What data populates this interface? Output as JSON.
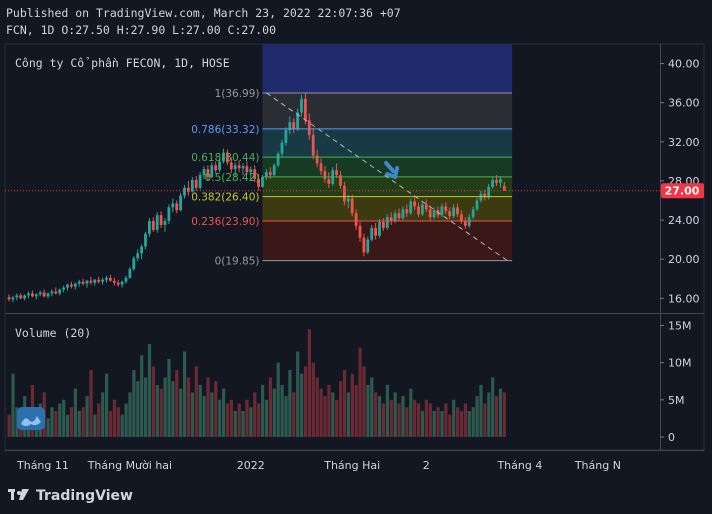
{
  "header": {
    "published": "Published on TradingView.com, March 23, 2022 22:07:36 +07",
    "ohlc": "FCN, 1D O:27.50 H:27.90 L:27.00 C:27.00"
  },
  "brand": {
    "name": "TradingView"
  },
  "colors": {
    "background": "#131722",
    "up": "#26a69a",
    "down": "#ef5350",
    "last_price": "#f23645",
    "text": "#d1d4dc"
  },
  "chart_data": {
    "type": "candlestick",
    "title": "Công ty Cổ phần FECON, 1D, HOSE",
    "y_axis": {
      "min": 14.5,
      "max": 42,
      "ticks": [
        "40.00",
        "36.00",
        "32.00",
        "28.00",
        "24.00",
        "20.00",
        "16.00"
      ],
      "tick_values": [
        40,
        36,
        32,
        28,
        24,
        20,
        16
      ]
    },
    "last_price": {
      "value": 27.0,
      "label": "27.00"
    },
    "x_labels": [
      "Tháng 11",
      "Tháng Mười hai",
      "2022",
      "Tháng Hai",
      "2",
      "Tháng 4",
      "Tháng N"
    ],
    "x_label_indices": [
      0,
      31,
      62,
      88,
      107,
      131,
      151
    ],
    "fibonacci": {
      "levels": [
        {
          "ratio": "1",
          "value": 36.99,
          "label": "1(36.99)",
          "color": "#9598a1"
        },
        {
          "ratio": "0.786",
          "value": 33.32,
          "label": "0.786(33.32)",
          "color": "#5b9cf6"
        },
        {
          "ratio": "0.618",
          "value": 30.44,
          "label": "0.618(30.44)",
          "color": "#4caf50"
        },
        {
          "ratio": "0.5",
          "value": 28.42,
          "label": "0.5(28.42)",
          "color": "#4caf50"
        },
        {
          "ratio": "0.382",
          "value": 26.4,
          "label": "0.382(26.40)",
          "color": "#c0ca33"
        },
        {
          "ratio": "0.236",
          "value": 23.9,
          "label": "0.236(23.90)",
          "color": "#ef5350"
        },
        {
          "ratio": "0",
          "value": 19.85,
          "label": "0(19.85)",
          "color": "#9598a1"
        }
      ],
      "top_extension": 42.0,
      "start_index": 65,
      "end_index": 129,
      "zone_colors": [
        "#202b6e",
        "#2a2d33",
        "#173a44",
        "#163a23",
        "#233d16",
        "#3b3a10",
        "#3a1818",
        "#2a1e24"
      ]
    },
    "trendline": {
      "from": {
        "index": 66,
        "value": 37.0
      },
      "to": {
        "index": 128,
        "value": 19.8
      }
    },
    "arrow_marker": {
      "index": 99,
      "value": 28.4,
      "color": "#3d88c9"
    },
    "volume": {
      "label": "Volume (20)",
      "ticks": [
        "15M",
        "10M",
        "5M",
        "0"
      ],
      "tick_values": [
        15,
        10,
        5,
        0
      ],
      "max": 16
    },
    "series": [
      {
        "name": "price",
        "candles": [
          [
            16.1,
            16.4,
            15.7,
            15.9
          ],
          [
            15.9,
            16.2,
            15.6,
            16.1
          ],
          [
            16.1,
            16.5,
            15.8,
            16.3
          ],
          [
            16.3,
            16.5,
            15.9,
            16.0
          ],
          [
            16.0,
            16.4,
            15.8,
            16.3
          ],
          [
            16.3,
            16.7,
            16.0,
            16.5
          ],
          [
            16.5,
            16.8,
            16.1,
            16.2
          ],
          [
            16.2,
            16.5,
            15.9,
            16.4
          ],
          [
            16.4,
            16.8,
            16.2,
            16.6
          ],
          [
            16.6,
            16.9,
            16.1,
            16.2
          ],
          [
            16.2,
            16.6,
            16.0,
            16.5
          ],
          [
            16.5,
            16.9,
            16.2,
            16.7
          ],
          [
            16.7,
            17.1,
            16.4,
            16.5
          ],
          [
            16.5,
            17.0,
            16.3,
            16.9
          ],
          [
            16.9,
            17.3,
            16.6,
            17.1
          ],
          [
            17.1,
            17.5,
            16.8,
            17.4
          ],
          [
            17.4,
            17.7,
            17.0,
            17.2
          ],
          [
            17.2,
            17.6,
            16.9,
            17.5
          ],
          [
            17.5,
            17.9,
            17.2,
            17.7
          ],
          [
            17.7,
            18.0,
            17.3,
            17.5
          ],
          [
            17.5,
            17.9,
            17.1,
            17.8
          ],
          [
            17.8,
            18.2,
            17.4,
            17.6
          ],
          [
            17.6,
            18.0,
            17.3,
            17.9
          ],
          [
            17.9,
            18.2,
            17.5,
            17.7
          ],
          [
            17.7,
            18.1,
            17.4,
            17.9
          ],
          [
            17.9,
            18.3,
            17.6,
            18.1
          ],
          [
            18.1,
            18.4,
            17.7,
            17.8
          ],
          [
            17.8,
            18.1,
            17.3,
            17.6
          ],
          [
            17.6,
            17.9,
            17.2,
            17.4
          ],
          [
            17.4,
            17.8,
            17.1,
            17.7
          ],
          [
            17.7,
            18.3,
            17.5,
            18.1
          ],
          [
            18.1,
            19.2,
            18.0,
            19.0
          ],
          [
            19.0,
            20.3,
            18.8,
            20.1
          ],
          [
            20.1,
            21.0,
            19.8,
            20.6
          ],
          [
            20.6,
            21.5,
            20.0,
            21.3
          ],
          [
            21.3,
            22.8,
            21.0,
            22.6
          ],
          [
            22.6,
            24.2,
            22.3,
            23.9
          ],
          [
            23.9,
            24.3,
            22.8,
            23.0
          ],
          [
            23.0,
            24.8,
            22.7,
            24.5
          ],
          [
            24.5,
            24.9,
            23.2,
            23.5
          ],
          [
            23.5,
            24.2,
            22.8,
            23.9
          ],
          [
            23.9,
            25.6,
            23.6,
            25.3
          ],
          [
            25.3,
            26.2,
            24.8,
            25.7
          ],
          [
            25.7,
            26.0,
            24.7,
            25.0
          ],
          [
            25.0,
            26.8,
            24.9,
            26.5
          ],
          [
            26.5,
            27.6,
            26.2,
            27.3
          ],
          [
            27.3,
            28.0,
            26.5,
            26.9
          ],
          [
            26.9,
            28.4,
            26.8,
            28.1
          ],
          [
            28.1,
            28.5,
            27.0,
            27.3
          ],
          [
            27.3,
            28.9,
            27.1,
            28.6
          ],
          [
            28.6,
            29.5,
            28.2,
            29.2
          ],
          [
            29.2,
            29.6,
            28.0,
            28.4
          ],
          [
            28.4,
            29.9,
            28.3,
            29.6
          ],
          [
            29.6,
            30.0,
            28.8,
            29.1
          ],
          [
            29.1,
            30.3,
            28.9,
            30.0
          ],
          [
            30.0,
            31.3,
            29.8,
            30.9
          ],
          [
            30.9,
            31.2,
            29.6,
            29.9
          ],
          [
            29.9,
            30.4,
            28.8,
            29.2
          ],
          [
            29.2,
            29.9,
            28.4,
            29.6
          ],
          [
            29.6,
            30.1,
            28.9,
            29.3
          ],
          [
            29.3,
            29.8,
            28.6,
            29.5
          ],
          [
            29.5,
            30.0,
            28.7,
            28.9
          ],
          [
            28.9,
            29.5,
            28.1,
            29.2
          ],
          [
            29.2,
            29.6,
            27.9,
            28.2
          ],
          [
            28.2,
            28.7,
            27.0,
            27.4
          ],
          [
            27.4,
            28.6,
            27.3,
            28.4
          ],
          [
            28.4,
            29.2,
            28.1,
            28.9
          ],
          [
            28.9,
            29.4,
            28.2,
            28.6
          ],
          [
            28.6,
            29.8,
            28.5,
            29.6
          ],
          [
            29.6,
            31.0,
            29.4,
            30.8
          ],
          [
            30.8,
            32.2,
            30.5,
            31.9
          ],
          [
            31.9,
            33.5,
            31.6,
            33.2
          ],
          [
            33.2,
            34.6,
            32.8,
            34.0
          ],
          [
            34.0,
            34.4,
            32.9,
            33.3
          ],
          [
            33.3,
            35.4,
            33.1,
            35.0
          ],
          [
            35.0,
            36.8,
            34.6,
            36.4
          ],
          [
            36.4,
            37.0,
            33.8,
            34.2
          ],
          [
            34.2,
            34.9,
            32.2,
            32.7
          ],
          [
            32.7,
            33.4,
            30.2,
            30.6
          ],
          [
            30.6,
            31.2,
            29.4,
            29.8
          ],
          [
            29.8,
            30.3,
            28.6,
            29.0
          ],
          [
            29.0,
            29.5,
            27.8,
            28.2
          ],
          [
            28.2,
            28.9,
            27.3,
            27.7
          ],
          [
            27.7,
            29.4,
            27.5,
            29.1
          ],
          [
            29.1,
            29.8,
            28.3,
            28.6
          ],
          [
            28.6,
            29.0,
            27.2,
            27.5
          ],
          [
            27.5,
            27.9,
            25.5,
            25.9
          ],
          [
            25.9,
            26.6,
            25.2,
            26.2
          ],
          [
            26.2,
            26.6,
            24.4,
            24.7
          ],
          [
            24.7,
            25.1,
            23.0,
            23.4
          ],
          [
            23.4,
            23.8,
            21.8,
            22.2
          ],
          [
            22.2,
            22.6,
            20.3,
            20.7
          ],
          [
            20.7,
            22.3,
            20.5,
            22.0
          ],
          [
            22.0,
            23.5,
            21.8,
            23.2
          ],
          [
            23.2,
            23.7,
            22.0,
            22.4
          ],
          [
            22.4,
            24.1,
            22.2,
            23.8
          ],
          [
            23.8,
            24.2,
            22.9,
            23.2
          ],
          [
            23.2,
            24.6,
            23.0,
            24.3
          ],
          [
            24.3,
            24.8,
            23.5,
            23.9
          ],
          [
            23.9,
            25.0,
            23.7,
            24.7
          ],
          [
            24.7,
            25.2,
            23.9,
            24.2
          ],
          [
            24.2,
            25.4,
            24.0,
            25.1
          ],
          [
            25.1,
            25.6,
            24.3,
            24.7
          ],
          [
            24.7,
            26.2,
            24.5,
            25.9
          ],
          [
            25.9,
            26.3,
            25.0,
            25.4
          ],
          [
            25.4,
            25.8,
            24.3,
            24.6
          ],
          [
            24.6,
            25.9,
            24.4,
            25.6
          ],
          [
            25.6,
            26.1,
            24.8,
            25.1
          ],
          [
            25.1,
            25.5,
            24.0,
            24.3
          ],
          [
            24.3,
            25.3,
            24.1,
            25.0
          ],
          [
            25.0,
            25.4,
            24.2,
            24.5
          ],
          [
            24.5,
            25.7,
            24.3,
            25.4
          ],
          [
            25.4,
            25.8,
            24.6,
            24.9
          ],
          [
            24.9,
            25.3,
            24.1,
            24.4
          ],
          [
            24.4,
            25.6,
            24.2,
            25.3
          ],
          [
            25.3,
            25.7,
            24.3,
            24.6
          ],
          [
            24.6,
            25.0,
            23.6,
            23.9
          ],
          [
            23.9,
            24.3,
            23.1,
            23.4
          ],
          [
            23.4,
            24.6,
            23.2,
            24.3
          ],
          [
            24.3,
            25.4,
            24.1,
            25.1
          ],
          [
            25.1,
            26.3,
            24.9,
            26.0
          ],
          [
            26.0,
            27.0,
            25.8,
            26.7
          ],
          [
            26.7,
            27.1,
            26.0,
            26.3
          ],
          [
            26.3,
            27.7,
            26.1,
            27.4
          ],
          [
            27.4,
            28.4,
            27.2,
            28.1
          ],
          [
            28.1,
            28.6,
            27.5,
            27.8
          ],
          [
            27.8,
            28.5,
            27.3,
            28.2
          ],
          [
            27.5,
            27.9,
            27.0,
            27.0
          ]
        ]
      },
      {
        "name": "volume",
        "values": [
          3.0,
          8.5,
          4.0,
          2.5,
          5.5,
          4.0,
          7.0,
          3.0,
          4.5,
          6.0,
          2.5,
          4.0,
          3.5,
          4.5,
          5.0,
          3.0,
          4.0,
          6.5,
          3.5,
          4.0,
          5.5,
          9.0,
          3.0,
          4.5,
          6.0,
          8.5,
          3.5,
          5.0,
          4.0,
          3.0,
          4.5,
          6.0,
          9.0,
          7.5,
          11.0,
          8.0,
          12.5,
          9.5,
          7.0,
          6.5,
          8.0,
          10.5,
          7.5,
          9.0,
          6.5,
          11.5,
          8.0,
          6.0,
          9.5,
          7.0,
          5.5,
          8.0,
          6.0,
          7.5,
          5.0,
          6.5,
          4.5,
          5.0,
          3.5,
          4.5,
          3.5,
          5.0,
          4.0,
          6.0,
          4.5,
          7.0,
          5.0,
          8.0,
          6.5,
          10.0,
          7.0,
          5.5,
          9.0,
          6.0,
          11.5,
          8.5,
          9.5,
          14.5,
          10.0,
          8.0,
          6.5,
          5.5,
          7.0,
          6.0,
          5.0,
          7.5,
          9.0,
          6.0,
          8.5,
          7.0,
          12.0,
          9.5,
          7.0,
          8.0,
          6.0,
          5.5,
          4.5,
          7.0,
          5.0,
          6.0,
          4.5,
          5.5,
          4.0,
          6.5,
          5.0,
          4.5,
          3.5,
          5.0,
          4.5,
          3.5,
          4.0,
          3.5,
          4.5,
          3.0,
          5.0,
          4.0,
          3.5,
          4.5,
          3.5,
          4.0,
          5.5,
          7.0,
          4.5,
          6.0,
          8.0,
          5.5,
          6.5,
          6.0
        ]
      }
    ]
  }
}
